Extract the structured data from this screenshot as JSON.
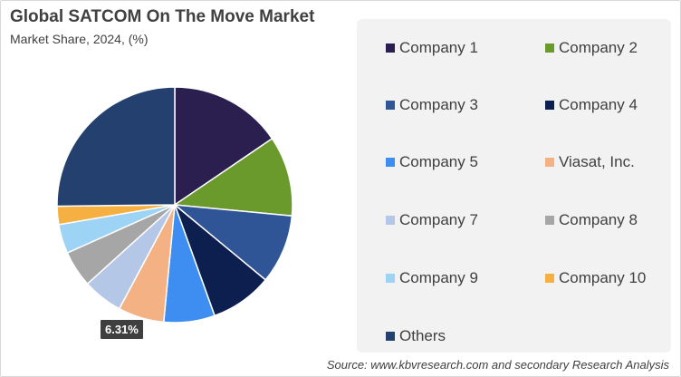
{
  "chart_data": {
    "type": "pie",
    "title": "Global SATCOM On The Move Market",
    "subtitle": "Market Share, 2024, (%)",
    "categories": [
      "Company 1",
      "Company 2",
      "Company 3",
      "Company 4",
      "Company 5",
      "Viasat, Inc.",
      "Company 7",
      "Company 8",
      "Company 9",
      "Company 10",
      "Others"
    ],
    "values": [
      15.5,
      11.0,
      9.5,
      8.5,
      7.0,
      6.31,
      5.5,
      5.0,
      4.0,
      2.5,
      25.19
    ],
    "colors": [
      "#2b1f4f",
      "#6a9a2b",
      "#2f5597",
      "#0d1f4f",
      "#3d8ef0",
      "#f4b183",
      "#b4c7e7",
      "#a6a6a6",
      "#9dd3f5",
      "#f5b041",
      "#24406e"
    ],
    "data_labels": {
      "Viasat, Inc.": "6.31%"
    },
    "legend_position": "right"
  },
  "source_text": "Source: www.kbvresearch.com and secondary Research Analysis"
}
